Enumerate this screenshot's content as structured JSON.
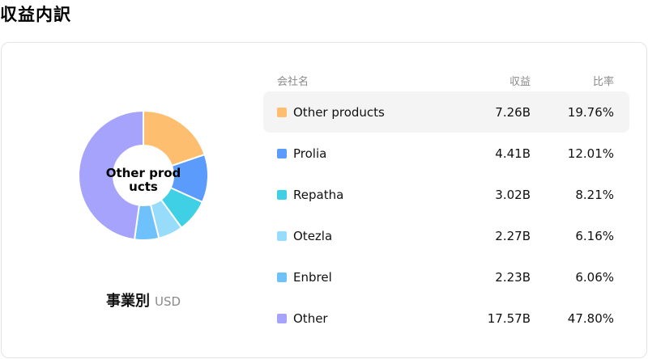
{
  "page_title": "収益内訳",
  "center_label": "Other prod\nucts",
  "subtitle": {
    "main": "事業別",
    "unit": "USD"
  },
  "table": {
    "headers": {
      "name": "会社名",
      "value": "収益",
      "percent": "比率"
    },
    "rows": [
      {
        "name": "Other products",
        "value": "7.26B",
        "percent": "19.76%",
        "color": "#fdbf6f",
        "highlighted": true
      },
      {
        "name": "Prolia",
        "value": "4.41B",
        "percent": "12.01%",
        "color": "#5b9bfb"
      },
      {
        "name": "Repatha",
        "value": "3.02B",
        "percent": "8.21%",
        "color": "#40d0e6"
      },
      {
        "name": "Otezla",
        "value": "2.27B",
        "percent": "6.16%",
        "color": "#97dcfa"
      },
      {
        "name": "Enbrel",
        "value": "2.23B",
        "percent": "6.06%",
        "color": "#6ec1fa"
      },
      {
        "name": "Other",
        "value": "17.57B",
        "percent": "47.80%",
        "color": "#a5a3fb"
      }
    ]
  },
  "chart_data": {
    "type": "pie",
    "donut": true,
    "categories": [
      "Other products",
      "Prolia",
      "Repatha",
      "Otezla",
      "Enbrel",
      "Other"
    ],
    "values": [
      19.76,
      12.01,
      8.21,
      6.16,
      6.06,
      47.8
    ],
    "colors": [
      "#fdbf6f",
      "#5b9bfb",
      "#40d0e6",
      "#97dcfa",
      "#6ec1fa",
      "#a5a3fb"
    ]
  }
}
